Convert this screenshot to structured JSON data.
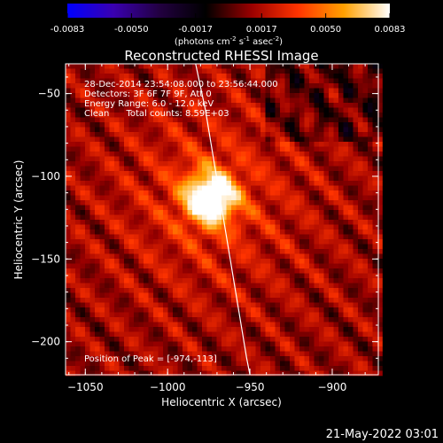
{
  "chart_data": {
    "type": "heatmap",
    "title": "Reconstructed RHESSI Image",
    "xlabel": "Heliocentric X (arcsec)",
    "ylabel": "Heliocentric Y (arcsec)",
    "xlim": [
      -1062,
      -872
    ],
    "ylim": [
      -220,
      -32
    ],
    "x_ticks": [
      -1050,
      -1000,
      -950,
      -900
    ],
    "y_ticks": [
      -50,
      -100,
      -150,
      -200
    ],
    "colorbar": {
      "range": [
        -0.0083,
        0.0083
      ],
      "ticks": [
        -0.0083,
        -0.005,
        -0.0017,
        0.0017,
        0.005,
        0.0083
      ],
      "tick_labels": [
        "-0.0083",
        "-0.0050",
        "-0.0017",
        "0.0017",
        "0.0050",
        "0.0083"
      ],
      "unit_main": "(photons cm",
      "unit_exp1": "-2",
      "unit_mid": " s",
      "unit_exp2": "-1",
      "unit_mid2": " asec",
      "unit_exp3": "-2",
      "unit_end": ")",
      "colormap": [
        "#0000ff",
        "#3a00b0",
        "#220040",
        "#000000",
        "#9a0000",
        "#ff3300",
        "#ffa000",
        "#ffffff"
      ]
    },
    "source": {
      "x": -974,
      "y": -113,
      "peak": 0.0083
    },
    "limb_curve": [
      [
        -983,
        -32
      ],
      [
        -977,
        -60
      ],
      [
        -972,
        -90
      ],
      [
        -967,
        -120
      ],
      [
        -962,
        -150
      ],
      [
        -957,
        -180
      ],
      [
        -952,
        -210
      ],
      [
        -950,
        -220
      ]
    ],
    "annotations": [
      "28-Dec-2014 23:54:08.000 to 23:56:44.000",
      "Detectors: 3F 6F 7F 9F, Att 0",
      "Energy Range: 6.0 - 12.0 keV",
      "Clean      Total counts: 8.59E+03"
    ],
    "peak_label": "Position of Peak = [-974,-113]"
  },
  "footer_timestamp": "21-May-2022 03:01"
}
